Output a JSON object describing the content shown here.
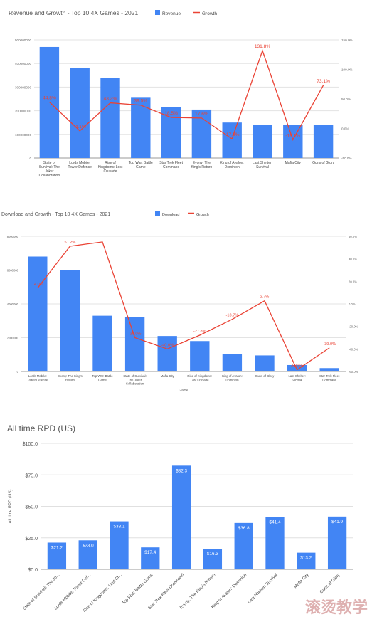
{
  "chart_data": [
    {
      "type": "bar",
      "title": "Revenue and Growth - Top 10 4X Games - 2021",
      "legend": {
        "position": "top-right",
        "items": [
          "Revenue",
          "Growth"
        ]
      },
      "categories": [
        "State of Survival: The Joker Collaboration",
        "Lords Mobile: Tower Defense",
        "Rise of Kingdoms: Lost Crusade",
        "Top War: Battle Game",
        "Star Trek Fleet Command",
        "Evony: The King's Return",
        "King of Avalon: Dominion",
        "Last Shelter: Survival",
        "Mafia City",
        "Guns of Glory"
      ],
      "y_ticks": [
        "0",
        "100000000",
        "200000000",
        "300000000",
        "400000000",
        "500000000"
      ],
      "y2_ticks": [
        "-50.0%",
        "0.0%",
        "50.0%",
        "100.0%",
        "150.0%"
      ],
      "ylim": [
        0,
        500000000
      ],
      "y2lim": [
        -50,
        150
      ],
      "series": [
        {
          "name": "Revenue",
          "kind": "bar",
          "color": "#4285f4",
          "values": [
            470000000,
            380000000,
            340000000,
            255000000,
            215000000,
            205000000,
            150000000,
            140000000,
            140000000,
            140000000
          ]
        },
        {
          "name": "Growth",
          "kind": "line",
          "color": "#ea4335",
          "values": [
            44.8,
            -4.1,
            43.3,
            39.5,
            18.5,
            17.6,
            -17.6,
            131.8,
            -19.1,
            73.1
          ],
          "labels": [
            "44.8%",
            "-4.1%",
            "43.3%",
            "39.5%",
            "18.5%",
            "17.6%",
            "-17.6%",
            "131.8%",
            "-19.1%",
            "73.1%"
          ]
        }
      ],
      "grid": true
    },
    {
      "type": "bar",
      "title": "Download and Growth - Top 10 4X Games - 2021",
      "legend": {
        "position": "top-right",
        "items": [
          "Download",
          "Growth"
        ]
      },
      "xlabel": "Game",
      "categories": [
        "Lords Mobile: Tower Defense",
        "Evony: The King's Return",
        "Top War: Battle Game",
        "State of Survival: The Joker Collaboration",
        "Mafia City",
        "Rise of Kingdoms: Lost Crusade",
        "King of Avalon: Dominion",
        "Guns of Glory",
        "Last Shelter: Survival",
        "Star Trek Fleet Command"
      ],
      "y_ticks": [
        "0",
        "2000000",
        "4000000",
        "6000000",
        "8000000"
      ],
      "y2_ticks": [
        "-60.0%",
        "-40.0%",
        "-20.0%",
        "0.0%",
        "20.0%",
        "40.0%",
        "60.0%"
      ],
      "ylim": [
        0,
        8000000
      ],
      "y2lim": [
        -60,
        60
      ],
      "series": [
        {
          "name": "Download",
          "kind": "bar",
          "color": "#4285f4",
          "values": [
            6800000,
            6000000,
            3300000,
            3200000,
            2100000,
            1800000,
            1050000,
            950000,
            380000,
            200000
          ]
        },
        {
          "name": "Growth",
          "kind": "line",
          "color": "#ea4335",
          "values": [
            14.0,
            51.2,
            55.0,
            -30.0,
            -40.0,
            -27.8,
            -13.7,
            2.7,
            -58.5,
            -39.0
          ],
          "labels": [
            "14.0%",
            "51.2%",
            "",
            "-30.0%",
            "-40.0%",
            "-27.8%",
            "-13.7%",
            "2.7%",
            "-58.5%",
            "-39.0%"
          ]
        }
      ],
      "grid": true
    },
    {
      "type": "bar",
      "title": "All time RPD (US)",
      "ylabel": "All time RPD (US)",
      "categories": [
        "State of Survival: The Jo...",
        "Lords Mobile: Tower Def...",
        "Rise of Kingdoms: Lost Cr...",
        "Top War: Battle Game",
        "Star Trek Fleet Command",
        "Evony: The King's Return",
        "King of Avalon: Dominion",
        "Last Shelter: Survival",
        "Mafia City",
        "Guns of Glory"
      ],
      "y_ticks": [
        "$0.0",
        "$25.0",
        "$50.0",
        "$75.0",
        "$100.0"
      ],
      "ylim": [
        0,
        100
      ],
      "series": [
        {
          "name": "All time RPD (US)",
          "kind": "bar",
          "color": "#4285f4",
          "values": [
            21.2,
            23.0,
            38.1,
            17.4,
            82.3,
            16.3,
            36.8,
            41.4,
            13.2,
            41.9
          ],
          "labels": [
            "$21.2",
            "$23.0",
            "$38.1",
            "$17.4",
            "$82.3",
            "$16.3",
            "$36.8",
            "$41.4",
            "$13.2",
            "$41.9"
          ]
        }
      ],
      "grid": true
    }
  ],
  "watermark": "滚烫教学"
}
